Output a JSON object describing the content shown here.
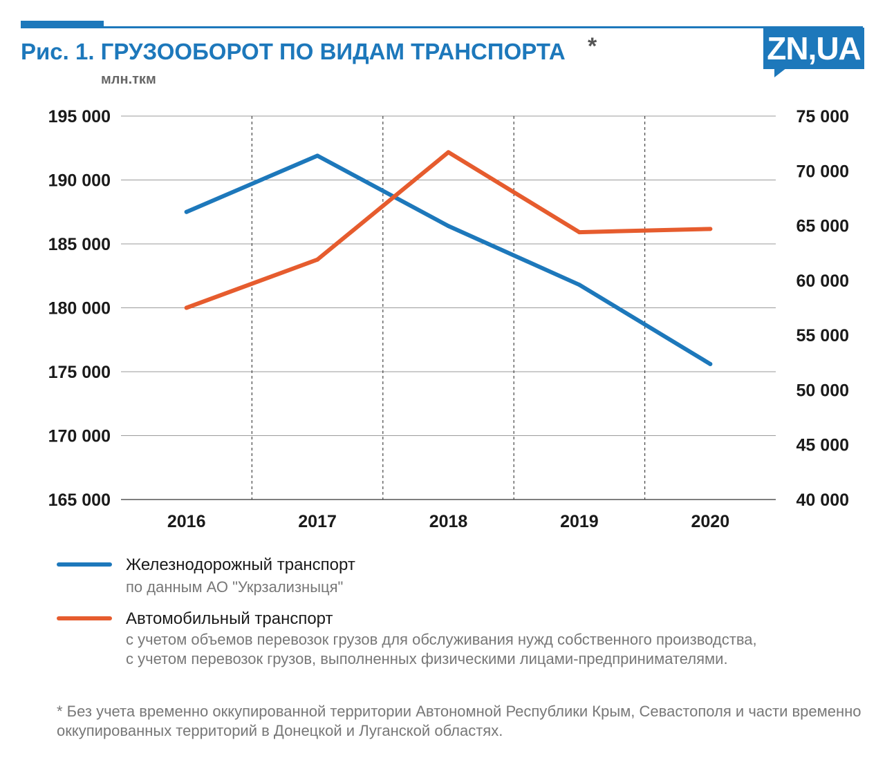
{
  "header": {
    "title": "Рис. 1. ГРУЗООБОРОТ ПО ВИДАМ ТРАНСПОРТА",
    "asterisk": "*",
    "units": "млн.ткм",
    "logo_text": "ZN,UA"
  },
  "chart_data": {
    "type": "line",
    "title": "Рис. 1. ГРУЗООБОРОТ ПО ВИДАМ ТРАНСПОРТА",
    "ylabel": "млн.ткм",
    "categories": [
      "2016",
      "2017",
      "2018",
      "2019",
      "2020"
    ],
    "y_left": {
      "ylim": [
        165000,
        195000
      ],
      "ticks": [
        "195 000",
        "190 000",
        "185 000",
        "180 000",
        "175 000",
        "170 000",
        "165 000"
      ],
      "tick_values": [
        195000,
        190000,
        185000,
        180000,
        175000,
        170000,
        165000
      ]
    },
    "y_right": {
      "ylim": [
        40000,
        75000
      ],
      "ticks": [
        "75 000",
        "70 000",
        "65 000",
        "60 000",
        "55 000",
        "50 000",
        "45 000",
        "40 000"
      ],
      "tick_values": [
        75000,
        70000,
        65000,
        60000,
        55000,
        50000,
        45000,
        40000
      ]
    },
    "series": [
      {
        "name": "Железнодорожный транспорт",
        "axis": "left",
        "color": "#1d78bb",
        "values": [
          187500,
          191900,
          186400,
          181800,
          175600
        ]
      },
      {
        "name": "Автомобильный транспорт",
        "axis": "right",
        "color": "#e65c2e",
        "values": [
          57500,
          61900,
          71700,
          64400,
          64700
        ]
      }
    ],
    "grid": true,
    "legend_position": "bottom"
  },
  "legend": {
    "rail_name": "Железнодорожный транспорт",
    "rail_note": "по данным АО \"Укрзализныця\"",
    "auto_name": "Автомобильный транспорт",
    "auto_note": "с учетом объемов перевозок грузов для обслуживания нужд собственного производства, с учетом перевозок грузов, выполненных физическими лицами-предпринимателями."
  },
  "footnote": "* Без учета временно оккупированной территории Автономной Республики Крым, Севастополя и части временно оккупированных территорий в Донецкой и Луганской областях."
}
